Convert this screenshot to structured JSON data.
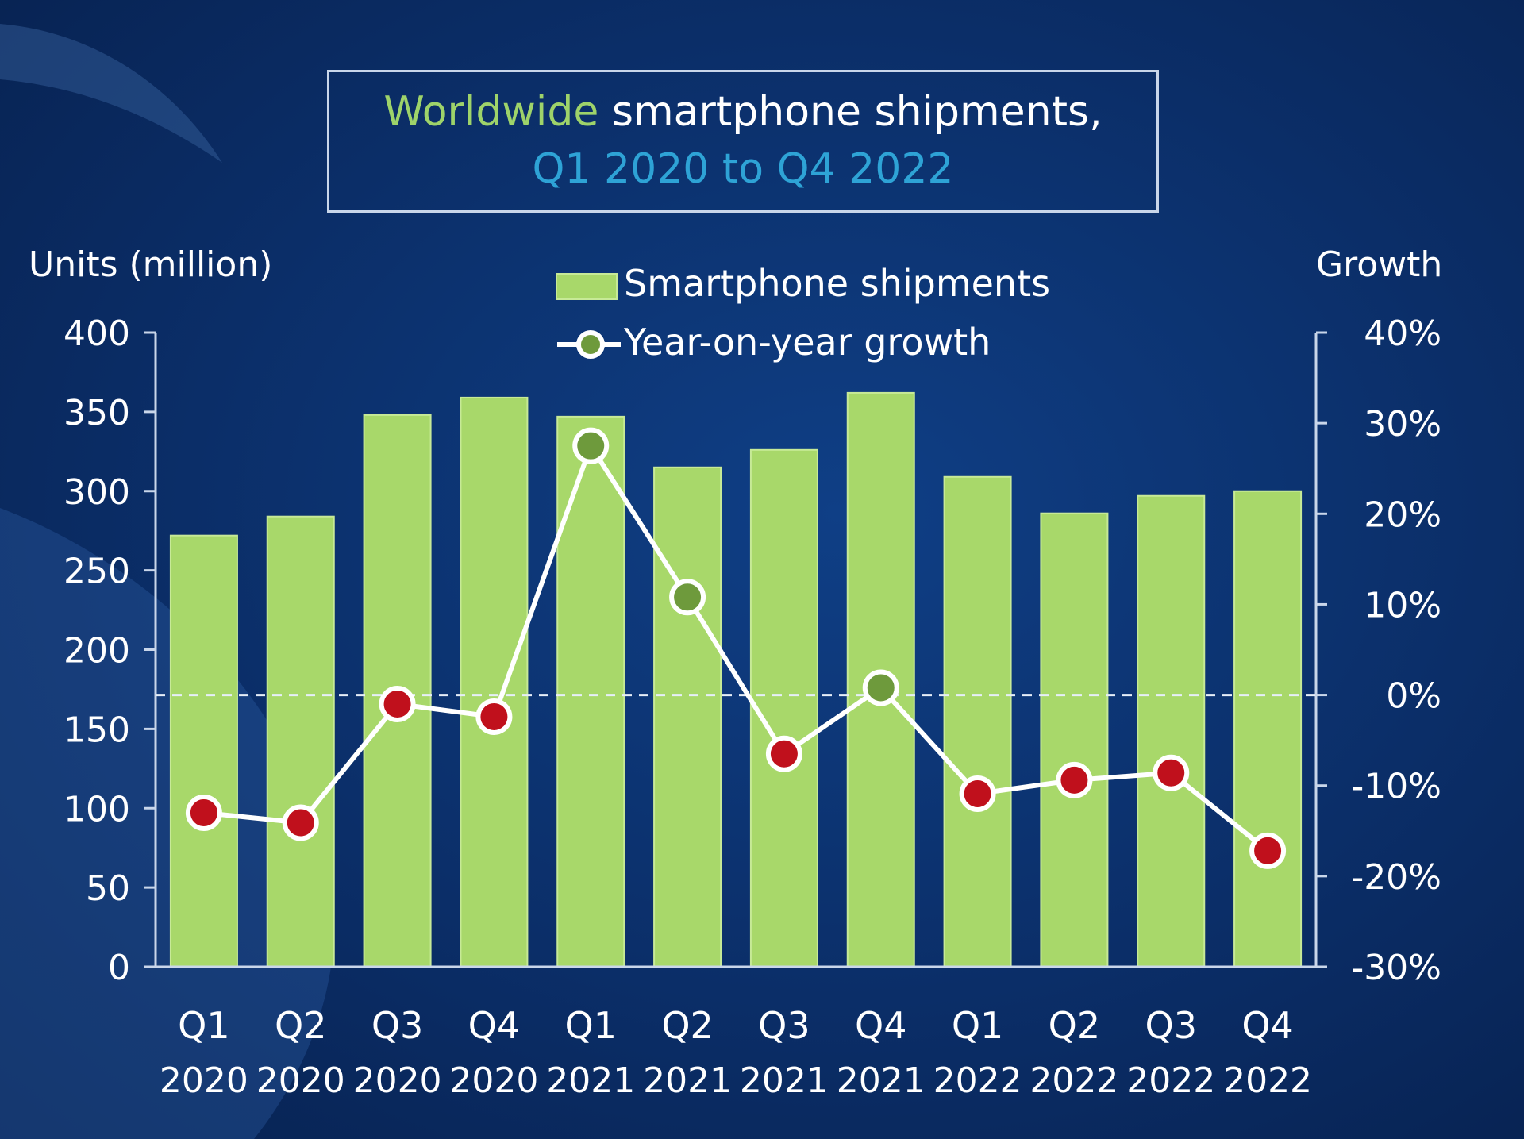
{
  "title": {
    "line1_highlight": "Worldwide",
    "line1_rest": " smartphone shipments,",
    "line2": "Q1 2020 to Q4 2022"
  },
  "axes": {
    "left_title": "Units (million)",
    "right_title": "Growth"
  },
  "legend": {
    "bars_label": "Smartphone shipments",
    "line_label": "Year-on-year growth"
  },
  "colors": {
    "bar": "#a8d86a",
    "highlight_text": "#9ed36a",
    "subtitle_text": "#2ea3d6",
    "negative_marker": "#c0101c",
    "positive_marker": "#6e9a3c",
    "line": "#ffffff"
  },
  "chart_data": {
    "type": "bar",
    "title": "Worldwide smartphone shipments, Q1 2020 to Q4 2022",
    "categories": [
      [
        "Q1",
        "2020"
      ],
      [
        "Q2",
        "2020"
      ],
      [
        "Q3",
        "2020"
      ],
      [
        "Q4",
        "2020"
      ],
      [
        "Q1",
        "2021"
      ],
      [
        "Q2",
        "2021"
      ],
      [
        "Q3",
        "2021"
      ],
      [
        "Q4",
        "2021"
      ],
      [
        "Q1",
        "2022"
      ],
      [
        "Q2",
        "2022"
      ],
      [
        "Q3",
        "2022"
      ],
      [
        "Q4",
        "2022"
      ]
    ],
    "series": [
      {
        "name": "Smartphone shipments",
        "type": "bar",
        "axis": "left",
        "values": [
          272,
          284,
          348,
          359,
          347,
          315,
          326,
          362,
          309,
          286,
          297,
          300
        ]
      },
      {
        "name": "Year-on-year growth",
        "type": "line",
        "axis": "right",
        "values": [
          -13,
          -14.1,
          -1,
          -2.4,
          27.5,
          10.8,
          -6.5,
          0.8,
          -10.9,
          -9.4,
          -8.6,
          -17.2
        ]
      }
    ],
    "ylabel": "Units (million)",
    "ylim": [
      0,
      400
    ],
    "yticks": [
      0,
      50,
      100,
      150,
      200,
      250,
      300,
      350,
      400
    ],
    "ylabel_right": "Growth",
    "ylim_right": [
      -30,
      40
    ],
    "yticks_right": [
      "-30%",
      "-20%",
      "-10%",
      "0%",
      "10%",
      "20%",
      "30%",
      "40%"
    ],
    "reference_line": "0%",
    "legend_position": "top-center"
  }
}
